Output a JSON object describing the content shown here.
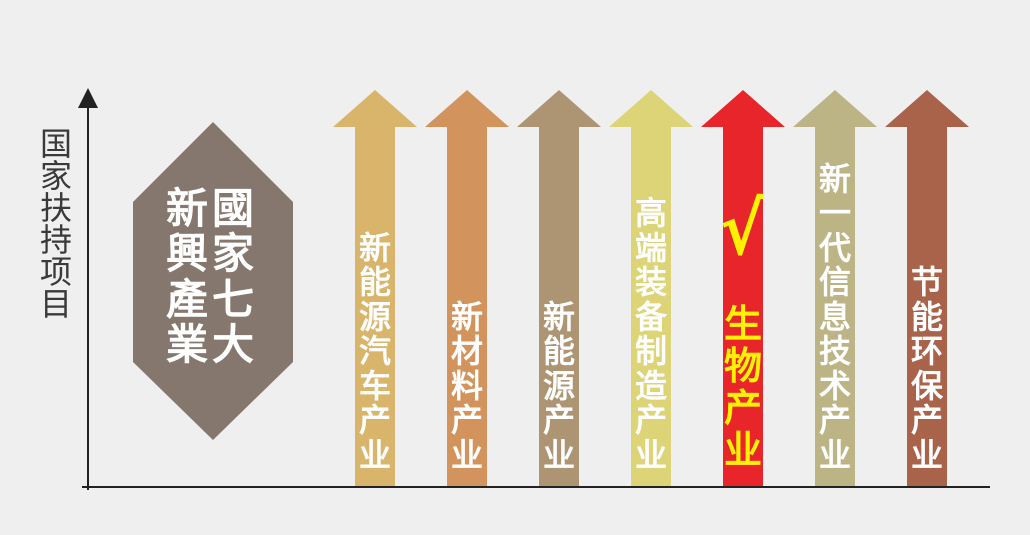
{
  "y_axis_label": "国家扶持项目",
  "hexagon": {
    "columns": [
      "新興產業",
      "國家七大"
    ],
    "color": "#85776d"
  },
  "arrows": [
    {
      "label": "新能源汽车产业",
      "color": "#d8b56a",
      "text_color": "#ffffff",
      "highlight": false
    },
    {
      "label": "新材料产业",
      "color": "#d2945c",
      "text_color": "#ffffff",
      "highlight": false
    },
    {
      "label": "新能源产业",
      "color": "#ad9574",
      "text_color": "#ffffff",
      "highlight": false
    },
    {
      "label": "高端装备制造产业",
      "color": "#ddd377",
      "text_color": "#ffffff",
      "highlight": false
    },
    {
      "label": "生物产业",
      "color": "#e8252a",
      "text_color": "#fff200",
      "highlight": true
    },
    {
      "label": "新一代信息技术产业",
      "color": "#bdb486",
      "text_color": "#ffffff",
      "highlight": false
    },
    {
      "label": "节能环保产业",
      "color": "#a8634a",
      "text_color": "#ffffff",
      "highlight": false
    }
  ],
  "checkmark": "√",
  "checkmark_color": "#fff200"
}
